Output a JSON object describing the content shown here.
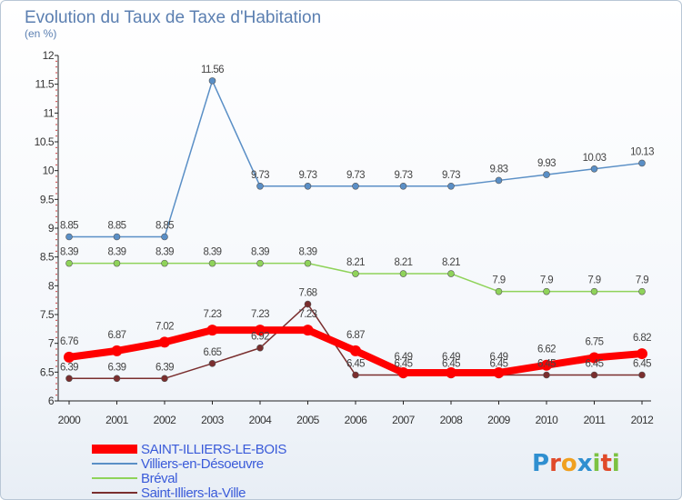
{
  "chart_data": {
    "type": "line",
    "title": "Evolution du Taux de Taxe d'Habitation",
    "subtitle": "(en %)",
    "x": [
      "2000",
      "2001",
      "2002",
      "2003",
      "2004",
      "2005",
      "2006",
      "2007",
      "2008",
      "2009",
      "2010",
      "2011",
      "2012"
    ],
    "ylim": [
      6,
      12
    ],
    "yticks": [
      "6",
      "6.5",
      "7",
      "7.5",
      "8",
      "8.5",
      "9",
      "9.5",
      "10",
      "10.5",
      "11",
      "11.5",
      "12"
    ],
    "grid": false,
    "legend_position": "bottom-left",
    "series": [
      {
        "name": "Villiers-en-Désoeuvre",
        "color": "#5a8fc6",
        "width": 1.5,
        "marker": 3.5,
        "values": [
          8.85,
          8.85,
          8.85,
          11.56,
          9.73,
          9.73,
          9.73,
          9.73,
          9.73,
          9.83,
          9.93,
          10.03,
          10.13
        ],
        "labels": [
          "8.85",
          "8.85",
          "8.85",
          "11.56",
          "9.73",
          "9.73",
          "9.73",
          "9.73",
          "9.73",
          "9.83",
          "9.93",
          "10.03",
          "10.13"
        ]
      },
      {
        "name": "Bréval",
        "color": "#8fd35a",
        "width": 1.5,
        "marker": 3.5,
        "values": [
          8.39,
          8.39,
          8.39,
          8.39,
          8.39,
          8.39,
          8.21,
          8.21,
          8.21,
          7.9,
          7.9,
          7.9,
          7.9
        ],
        "labels": [
          "8.39",
          "8.39",
          "8.39",
          "8.39",
          "8.39",
          "8.39",
          "8.21",
          "8.21",
          "8.21",
          "7.9",
          "7.9",
          "7.9",
          "7.9"
        ]
      },
      {
        "name": "Saint-Illiers-la-Ville",
        "color": "#7a2e2e",
        "width": 1.5,
        "marker": 3.5,
        "values": [
          6.39,
          6.39,
          6.39,
          6.65,
          6.92,
          7.68,
          6.45,
          6.45,
          6.45,
          6.45,
          6.45,
          6.45,
          6.45
        ],
        "labels": [
          "6.39",
          "6.39",
          "6.39",
          "6.65",
          "6.92",
          "7.68",
          "6.45",
          "6.45",
          "6.45",
          "6.45",
          "6.45",
          "6.45",
          "6.45"
        ]
      },
      {
        "name": "SAINT-ILLIERS-LE-BOIS",
        "color": "#ff0000",
        "width": 8,
        "marker": 6,
        "values": [
          6.76,
          6.87,
          7.02,
          7.23,
          7.23,
          7.23,
          6.87,
          6.49,
          6.49,
          6.49,
          6.62,
          6.75,
          6.82
        ],
        "labels": [
          "6.76",
          "6.87",
          "7.02",
          "7.23",
          "7.23",
          "7.23",
          "6.87",
          "6.49",
          "6.49",
          "6.49",
          "6.62",
          "6.75",
          "6.82"
        ]
      }
    ],
    "legend": [
      {
        "name": "SAINT-ILLIERS-LE-BOIS",
        "color": "#ff0000",
        "thick": true
      },
      {
        "name": "Villiers-en-Désoeuvre",
        "color": "#5a8fc6",
        "thick": false
      },
      {
        "name": "Bréval",
        "color": "#8fd35a",
        "thick": false
      },
      {
        "name": "Saint-Illiers-la-Ville",
        "color": "#7a2e2e",
        "thick": false
      }
    ],
    "legend_text_color": "#3a5bd9"
  },
  "logo": {
    "letters": [
      "P",
      "r",
      "o",
      "x",
      "i",
      "t",
      "i"
    ],
    "colors": [
      "#2f8fd0",
      "#e04a2a",
      "#f0a020",
      "#2f8fd0",
      "#7cc242",
      "#e04a2a",
      "#7cc242"
    ]
  }
}
